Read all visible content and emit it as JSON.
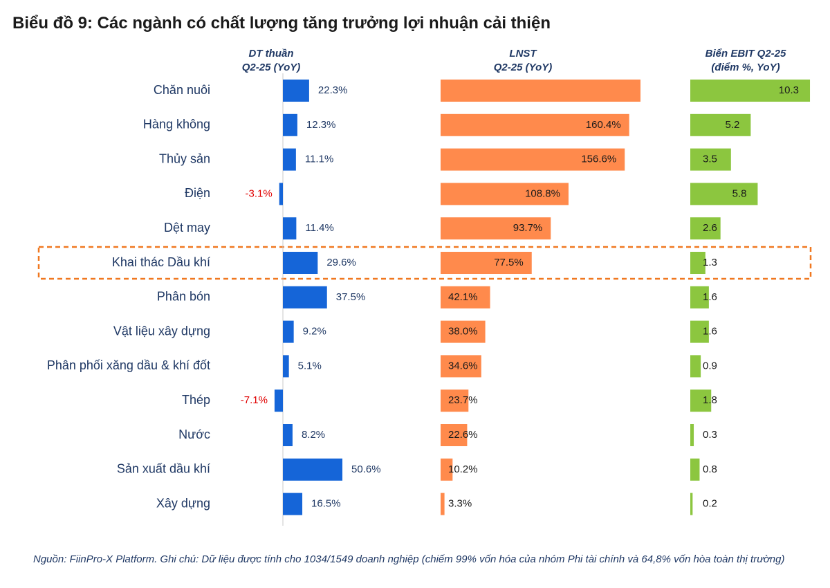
{
  "title": "Biểu đồ 9: Các ngành có chất lượng tăng trưởng lợi nhuận cải thiện",
  "headers": {
    "revenue": [
      "DT thuần",
      "Q2-25 (YoY)"
    ],
    "profit": [
      "LNST",
      "Q2-25 (YoY)"
    ],
    "ebit": [
      "Biển EBIT Q2-25",
      "(điểm %, YoY)"
    ]
  },
  "highlight_category": "Khai thác Dầu khí",
  "colors": {
    "revenue": "#1565d8",
    "profit": "#ff8a4c",
    "ebit": "#8cc63f",
    "negative_label": "#e00000",
    "category_text": "#1f3864",
    "highlight_border": "#f07820"
  },
  "chart_data": [
    {
      "type": "bar",
      "orientation": "horizontal",
      "title": "DT thuần Q2-25 (YoY)",
      "categories": [
        "Chăn nuôi",
        "Hàng không",
        "Thủy sản",
        "Điện",
        "Dệt may",
        "Khai thác Dầu khí",
        "Phân bón",
        "Vật liệu xây dựng",
        "Phân phối xăng dầu & khí đốt",
        "Thép",
        "Nước",
        "Sản xuất dầu khí",
        "Xây dựng"
      ],
      "values": [
        22.3,
        12.3,
        11.1,
        -3.1,
        11.4,
        29.6,
        37.5,
        9.2,
        5.1,
        -7.1,
        8.2,
        50.6,
        16.5
      ],
      "labels": [
        "22.3%",
        "12.3%",
        "11.1%",
        "-3.1%",
        "11.4%",
        "29.6%",
        "37.5%",
        "9.2%",
        "5.1%",
        "-7.1%",
        "8.2%",
        "50.6%",
        "16.5%"
      ],
      "unit": "%"
    },
    {
      "type": "bar",
      "orientation": "horizontal",
      "title": "LNST Q2-25 (YoY)",
      "categories": [
        "Chăn nuôi",
        "Hàng không",
        "Thủy sản",
        "Điện",
        "Dệt may",
        "Khai thác Dầu khí",
        "Phân bón",
        "Vật liệu xây dựng",
        "Phân phối xăng dầu & khí đốt",
        "Thép",
        "Nước",
        "Sản xuất dầu khí",
        "Xây dựng"
      ],
      "values": [
        170,
        160.4,
        156.6,
        108.8,
        93.7,
        77.5,
        42.1,
        38.0,
        34.6,
        23.7,
        22.6,
        10.2,
        3.3
      ],
      "labels": [
        "",
        "160.4%",
        "156.6%",
        "108.8%",
        "93.7%",
        "77.5%",
        "42.1%",
        "38.0%",
        "34.6%",
        "23.7%",
        "22.6%",
        "10.2%",
        "3.3%"
      ],
      "unit": "%"
    },
    {
      "type": "bar",
      "orientation": "horizontal",
      "title": "Biển EBIT Q2-25 (điểm %, YoY)",
      "categories": [
        "Chăn nuôi",
        "Hàng không",
        "Thủy sản",
        "Điện",
        "Dệt may",
        "Khai thác Dầu khí",
        "Phân bón",
        "Vật liệu xây dựng",
        "Phân phối xăng dầu & khí đốt",
        "Thép",
        "Nước",
        "Sản xuất dầu khí",
        "Xây dựng"
      ],
      "values": [
        10.3,
        5.2,
        3.5,
        5.8,
        2.6,
        1.3,
        1.6,
        1.6,
        0.9,
        1.8,
        0.3,
        0.8,
        0.2
      ],
      "labels": [
        "10.3",
        "5.2",
        "3.5",
        "5.8",
        "2.6",
        "1.3",
        "1.6",
        "1.6",
        "0.9",
        "1.8",
        "0.3",
        "0.8",
        "0.2"
      ],
      "unit": "điểm %"
    }
  ],
  "footnote": "Nguồn: FiinPro-X Platform. Ghi chú: Dữ liệu được tính cho 1034/1549 doanh nghiệp (chiếm 99% vốn hóa của nhóm Phi tài chính và 64,8% vốn hòa toàn thị trường)"
}
